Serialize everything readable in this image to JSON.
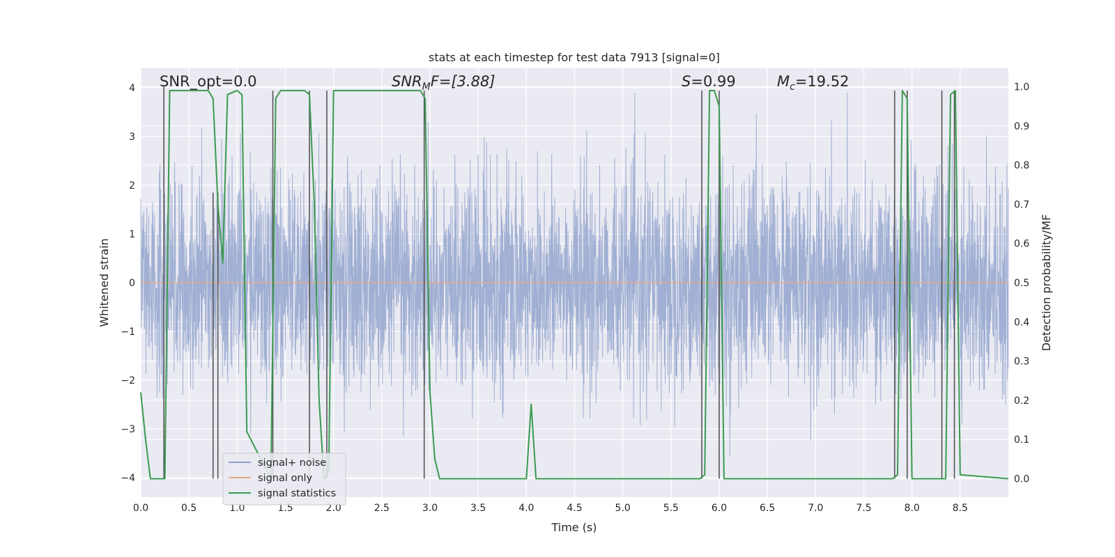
{
  "chart_data": {
    "type": "line",
    "title": "stats at each timestep for test data 7913 [signal=0]",
    "xlabel": "Time (s)",
    "ylabel_left": "Whitened strain",
    "ylabel_right": "Detection probability/MF",
    "xlim": [
      0,
      9
    ],
    "ylim_left": [
      -4.4,
      4.4
    ],
    "ylim_right": [
      -0.047,
      1.047
    ],
    "x_ticks": [
      "0.0",
      "0.5",
      "1.0",
      "1.5",
      "2.0",
      "2.5",
      "3.0",
      "3.5",
      "4.0",
      "4.5",
      "5.0",
      "5.5",
      "6.0",
      "6.5",
      "7.0",
      "7.5",
      "8.0",
      "8.5"
    ],
    "y_ticks_left": [
      "4",
      "3",
      "2",
      "1",
      "0",
      "−1",
      "−2",
      "−3",
      "−4"
    ],
    "y_ticks_right": [
      "1.0",
      "0.9",
      "0.8",
      "0.7",
      "0.6",
      "0.5",
      "0.4",
      "0.3",
      "0.2",
      "0.1",
      "0.0"
    ],
    "grid": true,
    "legend_placement": "lower-left",
    "annotations": {
      "snr_opt": "SNR_opt=0.0",
      "snr_mf_base": "SNR",
      "snr_mf_sub": "M",
      "snr_mf_rest": "F=[3.88]",
      "s_base": "S",
      "s_rest": "=0.99",
      "mc_base": "M",
      "mc_sub": "c",
      "mc_rest": "=19.52"
    },
    "series": [
      {
        "name": "signal+ noise",
        "color": "#8da0cb",
        "axis": "left",
        "amplitude_envelope": [
          -3.9,
          3.9
        ]
      },
      {
        "name": "signal only",
        "color": "#e5a98c",
        "axis": "left",
        "x": [
          0,
          9
        ],
        "y": [
          0,
          0
        ]
      },
      {
        "name": "signal statistics",
        "color": "#3a9a4f",
        "axis": "right",
        "x": [
          0.0,
          0.05,
          0.1,
          0.2,
          0.25,
          0.3,
          0.5,
          0.55,
          0.7,
          0.75,
          0.8,
          0.85,
          0.9,
          1.0,
          1.05,
          1.1,
          1.35,
          1.4,
          1.45,
          1.7,
          1.75,
          1.8,
          1.85,
          1.9,
          1.95,
          2.0,
          2.9,
          2.95,
          3.0,
          3.05,
          3.1,
          3.5,
          4.0,
          4.05,
          4.1,
          4.15,
          5.8,
          5.85,
          5.9,
          5.95,
          6.0,
          6.05,
          6.5,
          7.5,
          7.8,
          7.85,
          7.9,
          7.95,
          8.0,
          8.3,
          8.35,
          8.4,
          8.45,
          8.5,
          9.0
        ],
        "y": [
          0.22,
          0.1,
          0.0,
          0.0,
          0.0,
          0.99,
          0.99,
          0.99,
          0.99,
          0.97,
          0.7,
          0.55,
          0.98,
          0.99,
          0.98,
          0.12,
          0.0,
          0.97,
          0.99,
          0.99,
          0.98,
          0.7,
          0.2,
          0.0,
          0.02,
          0.99,
          0.99,
          0.97,
          0.22,
          0.05,
          0.0,
          0.0,
          0.0,
          0.19,
          0.0,
          0.0,
          0.0,
          0.01,
          0.99,
          0.99,
          0.95,
          0.0,
          0.0,
          0.0,
          0.0,
          0.01,
          0.99,
          0.97,
          0.0,
          0.0,
          0.0,
          0.98,
          0.99,
          0.01,
          0.0
        ]
      }
    ],
    "vertical_markers": [
      {
        "x": 0.24,
        "y_top": 1.0
      },
      {
        "x": 0.75,
        "y_top": 0.73
      },
      {
        "x": 0.8,
        "y_top": 0.73
      },
      {
        "x": 1.37,
        "y_top": 0.99
      },
      {
        "x": 1.75,
        "y_top": 0.99
      },
      {
        "x": 1.93,
        "y_top": 0.99
      },
      {
        "x": 2.94,
        "y_top": 0.99
      },
      {
        "x": 5.82,
        "y_top": 0.99
      },
      {
        "x": 6.0,
        "y_top": 0.99
      },
      {
        "x": 7.82,
        "y_top": 0.99
      },
      {
        "x": 7.95,
        "y_top": 0.99
      },
      {
        "x": 8.31,
        "y_top": 0.99
      },
      {
        "x": 8.44,
        "y_top": 0.99
      }
    ]
  }
}
